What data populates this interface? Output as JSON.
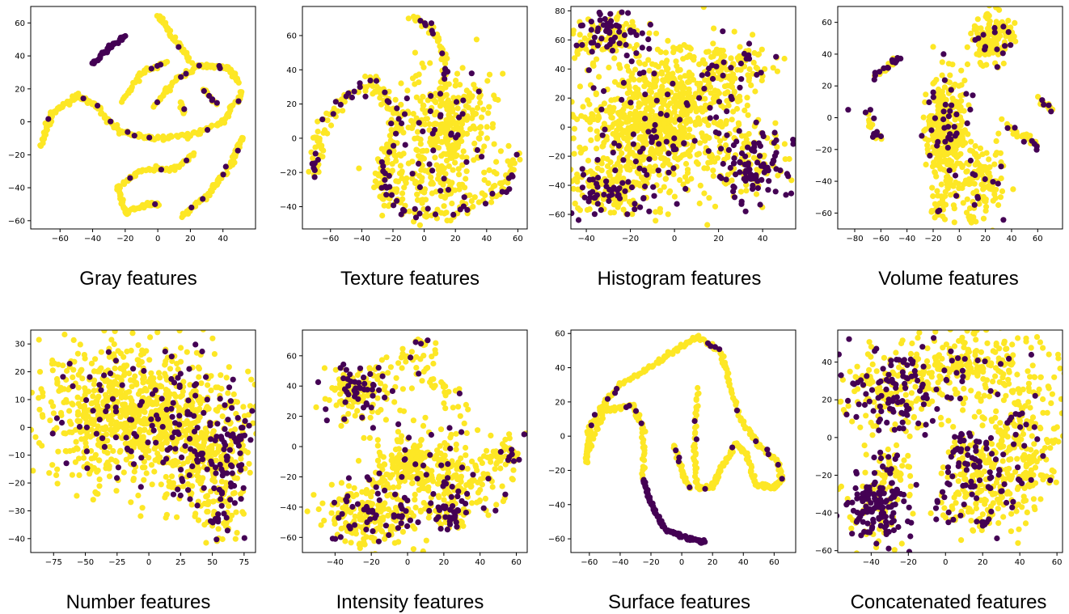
{
  "colors": {
    "class_a": "#440154",
    "class_b": "#fde725",
    "axis": "#000000"
  },
  "chart_data": [
    {
      "type": "scatter",
      "caption": "Gray features",
      "xticks": [
        -60,
        -40,
        -20,
        0,
        20,
        40
      ],
      "yticks": [
        -60,
        -40,
        -20,
        0,
        20,
        40,
        60
      ],
      "xlim": [
        -78,
        60
      ],
      "ylim": [
        -65,
        70
      ],
      "clusters": []
    },
    {
      "type": "scatter",
      "caption": "Texture features",
      "xticks": [
        -60,
        -40,
        -20,
        0,
        20,
        40,
        60
      ],
      "yticks": [
        -40,
        -20,
        0,
        20,
        40,
        60
      ],
      "xlim": [
        -78,
        66
      ],
      "ylim": [
        -53,
        77
      ],
      "clusters": []
    },
    {
      "type": "scatter",
      "caption": "Histogram features",
      "xticks": [
        -40,
        -20,
        0,
        20,
        40
      ],
      "yticks": [
        -60,
        -40,
        -20,
        0,
        20,
        40,
        60,
        80
      ],
      "xlim": [
        -47,
        55
      ],
      "ylim": [
        -70,
        83
      ],
      "clusters": []
    },
    {
      "type": "scatter",
      "caption": "Volume features",
      "xticks": [
        -80,
        -60,
        -40,
        -20,
        0,
        20,
        40,
        60
      ],
      "yticks": [
        -60,
        -40,
        -20,
        0,
        20,
        40,
        60
      ],
      "xlim": [
        -93,
        79
      ],
      "ylim": [
        -70,
        70
      ],
      "clusters": []
    },
    {
      "type": "scatter",
      "caption": "Number features",
      "xticks": [
        -75,
        -50,
        -25,
        0,
        25,
        50,
        75
      ],
      "yticks": [
        -40,
        -30,
        -20,
        -10,
        0,
        10,
        20,
        30
      ],
      "xlim": [
        -93,
        84
      ],
      "ylim": [
        -45,
        35
      ],
      "clusters": []
    },
    {
      "type": "scatter",
      "caption": "Intensity features",
      "xticks": [
        -40,
        -20,
        0,
        20,
        40,
        60
      ],
      "yticks": [
        -60,
        -40,
        -20,
        0,
        20,
        40,
        60
      ],
      "xlim": [
        -58,
        66
      ],
      "ylim": [
        -70,
        77
      ],
      "clusters": []
    },
    {
      "type": "scatter",
      "caption": "Surface features",
      "xticks": [
        -60,
        -40,
        -20,
        0,
        20,
        40,
        60
      ],
      "yticks": [
        -60,
        -40,
        -20,
        0,
        20,
        40,
        60
      ],
      "xlim": [
        -72,
        74
      ],
      "ylim": [
        -68,
        62
      ],
      "clusters": []
    },
    {
      "type": "scatter",
      "caption": "Concatenated features",
      "xticks": [
        -40,
        -20,
        0,
        20,
        40,
        60
      ],
      "yticks": [
        -60,
        -40,
        -20,
        0,
        20,
        40
      ],
      "xlim": [
        -58,
        63
      ],
      "ylim": [
        -61,
        57
      ],
      "clusters": []
    }
  ]
}
